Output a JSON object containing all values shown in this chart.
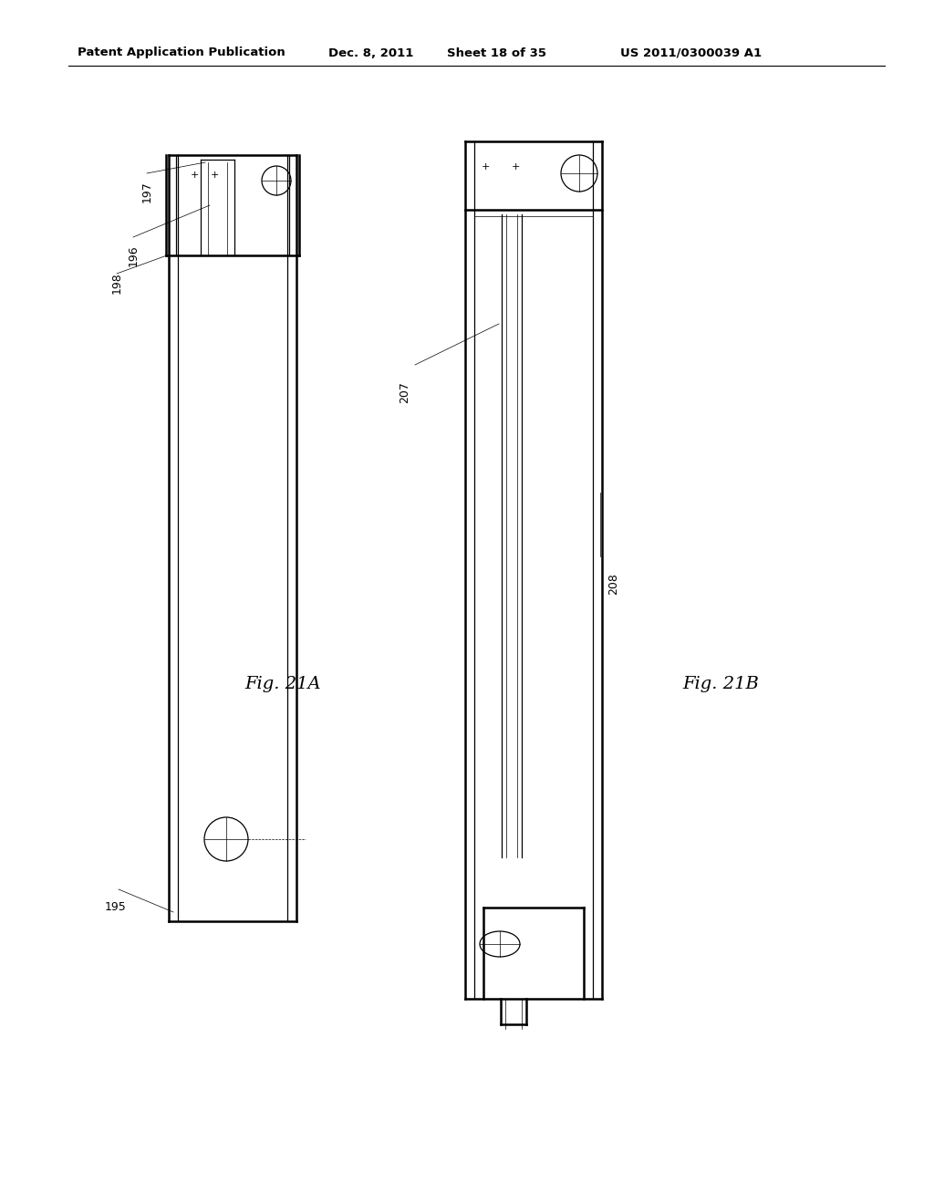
{
  "bg_color": "#ffffff",
  "line_color": "#000000",
  "header_text": "Patent Application Publication",
  "header_date": "Dec. 8, 2011",
  "header_sheet": "Sheet 18 of 35",
  "header_patent": "US 2011/0300039 A1",
  "fig21A_label": "Fig. 21A",
  "fig21B_label": "Fig. 21B"
}
